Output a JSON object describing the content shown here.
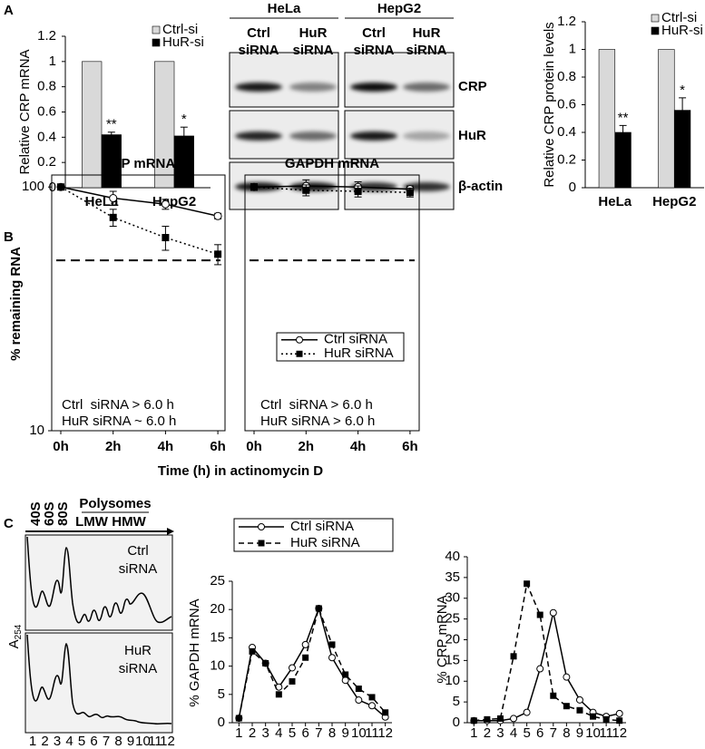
{
  "panel_labels": [
    "A",
    "B",
    "C"
  ],
  "blot": {
    "cell_lines": [
      "HeLa",
      "HepG2"
    ],
    "columns": [
      [
        "Ctrl",
        "siRNA"
      ],
      [
        "HuR",
        "siRNA"
      ],
      [
        "Ctrl",
        "siRNA"
      ],
      [
        "HuR",
        "siRNA"
      ]
    ],
    "proteins": [
      "CRP",
      "HuR",
      "β-actin"
    ]
  },
  "profile": {
    "peaks": [
      "40S",
      "60S",
      "80S"
    ],
    "polysomes": "Polysomes",
    "lmw": "LMW",
    "hmw": "HMW",
    "ylabel": [
      "A",
      "254"
    ],
    "conditions": [
      [
        "Ctrl",
        "siRNA"
      ],
      [
        "HuR",
        "siRNA"
      ]
    ],
    "fractions": [
      1,
      2,
      3,
      4,
      5,
      6,
      7,
      8,
      9,
      10,
      11,
      12
    ]
  },
  "chart_data": [
    {
      "type": "bar",
      "ylabel": "Relative CRP mRNA",
      "categories": [
        "HeLa",
        "HepG2"
      ],
      "series": [
        {
          "name": "Ctrl-si",
          "color": "#d9d9d9",
          "values": [
            1,
            1
          ]
        },
        {
          "name": "HuR-si",
          "color": "#000000",
          "values": [
            0.42,
            0.41
          ],
          "errors": [
            0.02,
            0.07
          ],
          "significance": [
            "**",
            "*"
          ]
        }
      ],
      "ylim": [
        0,
        1.2
      ],
      "yticks": [
        0,
        0.2,
        0.4,
        0.6,
        0.8,
        1,
        1.2
      ],
      "legend": "top-right"
    },
    {
      "type": "bar",
      "ylabel": "Relative CRP protein levels",
      "categories": [
        "HeLa",
        "HepG2"
      ],
      "series": [
        {
          "name": "Ctrl-si",
          "color": "#d9d9d9",
          "values": [
            1,
            1
          ]
        },
        {
          "name": "HuR-si",
          "color": "#000000",
          "values": [
            0.4,
            0.56
          ],
          "errors": [
            0.05,
            0.09
          ],
          "significance": [
            "**",
            "*"
          ]
        }
      ],
      "ylim": [
        0,
        1.2
      ],
      "yticks": [
        0,
        0.2,
        0.4,
        0.6,
        0.8,
        1,
        1.2
      ],
      "legend": "top-right"
    },
    {
      "type": "line",
      "title": "CRP mRNA",
      "ylabel": "% remaining RNA",
      "xlabel": "Time (h) in actinomycin D",
      "categories": [
        "0h",
        "2h",
        "4h",
        "6h"
      ],
      "log_scale": true,
      "ylim": [
        10,
        112
      ],
      "yticks": [
        10,
        100
      ],
      "reference_line": 50,
      "series": [
        {
          "name": "Ctrl siRNA",
          "color": "#000000",
          "style": "solid",
          "marker": "circle",
          "values": [
            100,
            90,
            85,
            76
          ],
          "errors": [
            2,
            6,
            4,
            2
          ]
        },
        {
          "name": "HuR siRNA",
          "color": "#000000",
          "style": "dotted",
          "marker": "square",
          "values": [
            100,
            75,
            62,
            53
          ],
          "errors": [
            2,
            6,
            7,
            5
          ]
        }
      ],
      "annotations": [
        "Ctrl  siRNA > 6.0 h",
        "HuR siRNA ~ 6.0 h"
      ]
    },
    {
      "type": "line",
      "title": "GAPDH mRNA",
      "categories": [
        "0h",
        "2h",
        "4h",
        "6h"
      ],
      "log_scale": true,
      "ylim": [
        10,
        112
      ],
      "reference_line": 50,
      "legend": "center-right",
      "series": [
        {
          "name": "Ctrl siRNA",
          "color": "#000000",
          "style": "solid",
          "marker": "circle",
          "values": [
            100,
            101,
            100,
            98
          ],
          "errors": [
            3,
            6,
            5,
            3
          ]
        },
        {
          "name": "HuR siRNA",
          "color": "#000000",
          "style": "dotted",
          "marker": "square",
          "values": [
            100,
            97,
            96,
            95
          ],
          "errors": [
            3,
            5,
            5,
            4
          ]
        }
      ],
      "annotations": [
        "Ctrl  siRNA > 6.0 h",
        "HuR siRNA > 6.0 h"
      ]
    },
    {
      "type": "line",
      "ylabel": "% GAPDH mRNA",
      "x": [
        1,
        2,
        3,
        4,
        5,
        6,
        7,
        8,
        9,
        10,
        11,
        12
      ],
      "xlim": [
        0.5,
        12.5
      ],
      "ylim": [
        0,
        25
      ],
      "yticks": [
        0,
        5,
        10,
        15,
        20,
        25
      ],
      "legend": "top",
      "series": [
        {
          "name": "Ctrl siRNA",
          "color": "#000000",
          "style": "solid",
          "marker": "circle",
          "values": [
            0.8,
            13.3,
            10.5,
            6.3,
            9.7,
            13.8,
            20.2,
            11.5,
            7.5,
            4,
            3,
            1
          ]
        },
        {
          "name": "HuR siRNA",
          "color": "#000000",
          "style": "dashed",
          "marker": "square",
          "values": [
            0.8,
            12.6,
            10.5,
            5,
            7.3,
            11.5,
            20.2,
            13.8,
            8.5,
            6,
            4.5,
            1.8
          ]
        }
      ]
    },
    {
      "type": "line",
      "ylabel": "% CRP mRNA",
      "x": [
        1,
        2,
        3,
        4,
        5,
        6,
        7,
        8,
        9,
        10,
        11,
        12
      ],
      "xlim": [
        0.5,
        12.5
      ],
      "ylim": [
        0,
        40
      ],
      "yticks": [
        0,
        5,
        10,
        15,
        20,
        25,
        30,
        35,
        40
      ],
      "series": [
        {
          "name": "Ctrl siRNA",
          "color": "#000000",
          "style": "solid",
          "marker": "circle",
          "values": [
            0.5,
            0.5,
            0.5,
            1,
            2.5,
            13,
            26.5,
            11,
            5.5,
            2.5,
            1.5,
            2.2
          ]
        },
        {
          "name": "HuR siRNA",
          "color": "#000000",
          "style": "dashed",
          "marker": "square",
          "values": [
            0.5,
            0.8,
            1,
            16,
            33.5,
            26,
            6.5,
            4,
            3,
            1.5,
            0.8,
            0.5
          ]
        }
      ]
    }
  ]
}
